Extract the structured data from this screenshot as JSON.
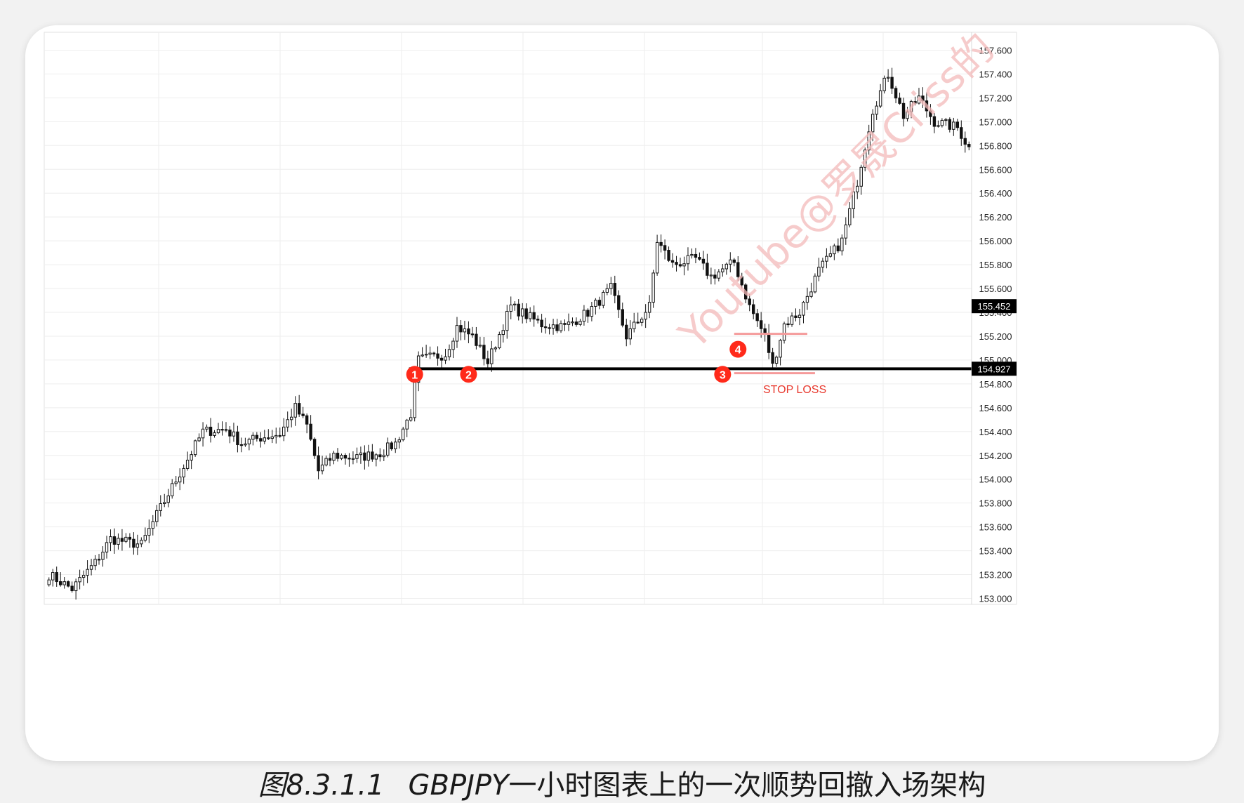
{
  "caption": {
    "figure_number": "图8.3.1.1",
    "symbol": "GBPJPY",
    "text": "一小时图表上的一次顺势回撤入场架构"
  },
  "watermark": "Youtube@罗晟Criss的",
  "colors": {
    "support_line": "#000000",
    "marker": "#ff2a1a",
    "stop_loss": "#e8392e",
    "stop_line": "#f59a9a",
    "watermark": "#f3b9b9",
    "grid": "#eeeeee"
  },
  "chart_data": {
    "type": "candlestick",
    "ylim": [
      152.95,
      157.75
    ],
    "y_ticks": [
      "153.000",
      "153.200",
      "153.400",
      "153.600",
      "153.800",
      "154.000",
      "154.200",
      "154.400",
      "154.600",
      "154.800",
      "155.000",
      "155.200",
      "155.400",
      "155.600",
      "155.800",
      "156.000",
      "156.200",
      "156.400",
      "156.600",
      "156.800",
      "157.000",
      "157.200",
      "157.400",
      "157.600"
    ],
    "price_labels": [
      {
        "label": "155.452",
        "value": 155.452
      },
      {
        "label": "154.927",
        "value": 154.927
      }
    ],
    "support_level": 154.927,
    "annotations": [
      {
        "label": "1",
        "candle_index": 95,
        "value": 154.88
      },
      {
        "label": "2",
        "candle_index": 109,
        "value": 154.88
      },
      {
        "label": "3",
        "candle_index": 175,
        "value": 154.88
      },
      {
        "label": "4",
        "candle_index": 179,
        "value": 155.09
      }
    ],
    "stop_loss_label": "STOP LOSS",
    "horizontal_marks": [
      {
        "value": 155.22,
        "from_index": 178,
        "to_index": 197
      },
      {
        "value": 154.89,
        "from_index": 178,
        "to_index": 199
      }
    ],
    "waypoints": [
      [
        0,
        153.2
      ],
      [
        6,
        153.08
      ],
      [
        12,
        153.3
      ],
      [
        16,
        153.5
      ],
      [
        24,
        153.45
      ],
      [
        28,
        153.7
      ],
      [
        34,
        154.05
      ],
      [
        40,
        154.4
      ],
      [
        46,
        154.42
      ],
      [
        50,
        154.3
      ],
      [
        55,
        154.35
      ],
      [
        60,
        154.38
      ],
      [
        64,
        154.6
      ],
      [
        67,
        154.45
      ],
      [
        70,
        154.07
      ],
      [
        74,
        154.2
      ],
      [
        80,
        154.18
      ],
      [
        86,
        154.22
      ],
      [
        90,
        154.3
      ],
      [
        94,
        154.55
      ],
      [
        96,
        155.0
      ],
      [
        103,
        155.05
      ],
      [
        106,
        155.28
      ],
      [
        110,
        155.2
      ],
      [
        114,
        154.98
      ],
      [
        120,
        155.45
      ],
      [
        128,
        155.3
      ],
      [
        134,
        155.28
      ],
      [
        140,
        155.4
      ],
      [
        146,
        155.6
      ],
      [
        150,
        155.2
      ],
      [
        156,
        155.45
      ],
      [
        158,
        156.0
      ],
      [
        162,
        155.8
      ],
      [
        168,
        155.85
      ],
      [
        172,
        155.7
      ],
      [
        178,
        155.82
      ],
      [
        182,
        155.45
      ],
      [
        186,
        155.2
      ],
      [
        188,
        154.95
      ],
      [
        191,
        155.3
      ],
      [
        195,
        155.4
      ],
      [
        200,
        155.75
      ],
      [
        206,
        156.0
      ],
      [
        210,
        156.5
      ],
      [
        214,
        157.1
      ],
      [
        218,
        157.4
      ],
      [
        222,
        157.05
      ],
      [
        226,
        157.2
      ],
      [
        230,
        157.0
      ],
      [
        236,
        156.95
      ],
      [
        239,
        156.78
      ]
    ]
  }
}
